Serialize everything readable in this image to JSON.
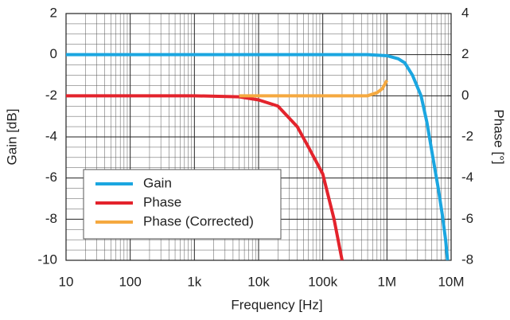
{
  "chart_data": {
    "type": "line",
    "xlabel": "Frequency [Hz]",
    "ylabel": "Gain [dB]",
    "y2label": "Phase [°]",
    "xscale": "log",
    "xlim": [
      10,
      10000000
    ],
    "xticks": [
      10,
      100,
      {
        "value": 1000,
        "label": "1k"
      },
      {
        "value": 10000,
        "label": "10k"
      },
      {
        "value": 100000,
        "label": "100k"
      },
      {
        "value": 1000000,
        "label": "1M"
      },
      {
        "value": 10000000,
        "label": "10M"
      }
    ],
    "xminor": [
      20,
      30,
      40,
      50,
      60,
      70,
      80,
      90,
      200,
      300,
      400,
      500,
      600,
      700,
      800,
      900,
      2000,
      3000,
      4000,
      5000,
      6000,
      7000,
      8000,
      9000,
      20000,
      30000,
      40000,
      50000,
      60000,
      70000,
      80000,
      90000,
      200000,
      300000,
      400000,
      500000,
      600000,
      700000,
      800000,
      900000,
      2000000,
      3000000,
      4000000,
      5000000,
      6000000,
      7000000,
      8000000,
      9000000
    ],
    "ylim": [
      -10,
      2
    ],
    "yticks": [
      -10,
      -8,
      -6,
      -4,
      -2,
      0,
      2
    ],
    "yminor": [
      -9.5,
      -9,
      -8.5,
      -7.5,
      -7,
      -6.5,
      -5.5,
      -5,
      -4.5,
      -3.5,
      -3,
      -2.5,
      -1.5,
      -1,
      -0.5,
      0.5,
      1,
      1.5
    ],
    "y2lim": [
      -8,
      4
    ],
    "y2ticks": [
      -8,
      -6,
      -4,
      -2,
      0,
      2,
      4
    ],
    "grid": true,
    "legend": "lower left",
    "series": [
      {
        "name": "Gain",
        "color": "#1ba6e0",
        "x": [
          10,
          100000,
          500000,
          1000000,
          1500000,
          1900000,
          2500000,
          3400000,
          4200000,
          5200000,
          6300000,
          7300000,
          8200000,
          8800000
        ],
        "values": [
          0,
          0,
          0,
          -0.05,
          -0.2,
          -0.4,
          -1,
          -2,
          -3.3,
          -5,
          -6.5,
          -7.8,
          -9,
          -10
        ]
      },
      {
        "name": "Phase",
        "color": "#e3232c",
        "axis": "y2",
        "x": [
          10,
          1000,
          5000,
          10000,
          20000,
          40000,
          60000,
          100000,
          150000,
          200000
        ],
        "values": [
          0,
          0,
          -0.05,
          -0.2,
          -0.5,
          -1.5,
          -2.5,
          -3.8,
          -6,
          -8
        ]
      },
      {
        "name": "Phase (Corrected)",
        "color": "#f5a940",
        "axis": "y2",
        "x": [
          5000,
          500000,
          700000,
          850000,
          1000000
        ],
        "values": [
          0,
          0,
          0.15,
          0.35,
          0.75
        ]
      }
    ]
  }
}
